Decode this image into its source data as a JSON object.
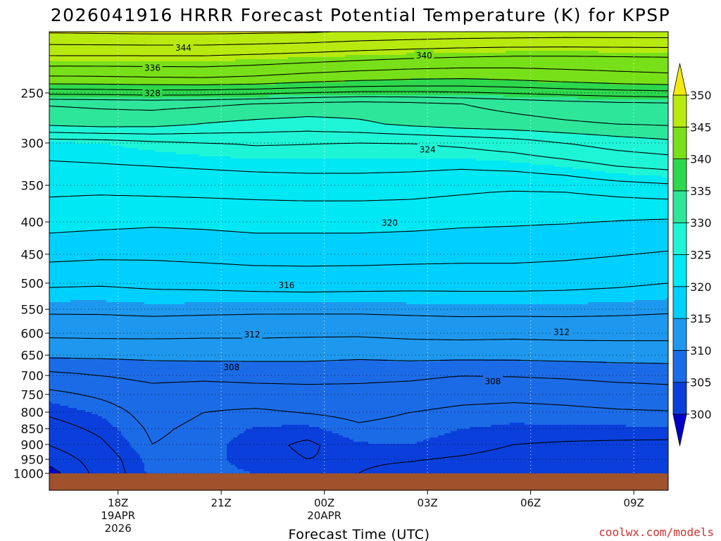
{
  "title": "2026041916 HRRR Forecast Potential Temperature (K) for KPSP",
  "credit": "coolwx.com/models",
  "colors": {
    "credit": "#cc3333",
    "ground": "#a0522d",
    "bands": [
      "#0000cc",
      "#0a3fdc",
      "#1c6be6",
      "#1e98ee",
      "#00d0ff",
      "#00e8f4",
      "#1ef5d6",
      "#2ee69a",
      "#2dd84c",
      "#78e018",
      "#b8ea10",
      "#f2ea10",
      "#ffd400"
    ]
  },
  "chart_data": {
    "type": "heatmap",
    "title": "2026041916 HRRR Forecast Potential Temperature (K) for KPSP",
    "xlabel": "Forecast Time (UTC)",
    "ylabel": "",
    "x_ticks": [
      {
        "hours": 2,
        "label": "18Z",
        "sub1": "19APR",
        "sub2": "2026"
      },
      {
        "hours": 5,
        "label": "21Z",
        "sub1": "",
        "sub2": ""
      },
      {
        "hours": 8,
        "label": "00Z",
        "sub1": "20APR",
        "sub2": ""
      },
      {
        "hours": 11,
        "label": "03Z",
        "sub1": "",
        "sub2": ""
      },
      {
        "hours": 14,
        "label": "06Z",
        "sub1": "",
        "sub2": ""
      },
      {
        "hours": 17,
        "label": "09Z",
        "sub1": "",
        "sub2": ""
      }
    ],
    "xlim": [
      0,
      18
    ],
    "y_ticks": [
      "250",
      "300",
      "350",
      "400",
      "450",
      "500",
      "550",
      "600",
      "650",
      "700",
      "750",
      "800",
      "850",
      "900",
      "950",
      "1000"
    ],
    "y_values": [
      250,
      300,
      350,
      400,
      450,
      500,
      550,
      600,
      650,
      700,
      750,
      800,
      850,
      900,
      950,
      1000
    ],
    "ylim": [
      200,
      1000
    ],
    "y_scale": "log",
    "grid": true,
    "colorbar": {
      "levels": [
        300,
        305,
        310,
        315,
        320,
        325,
        330,
        335,
        340,
        345,
        350
      ],
      "labels": [
        "300",
        "305",
        "310",
        "315",
        "320",
        "325",
        "330",
        "335",
        "340",
        "345",
        "350"
      ],
      "extend": "both"
    },
    "contour_interval": 2,
    "contour_labels": [
      {
        "text": "344",
        "hours": 3.9,
        "p": 212
      },
      {
        "text": "340",
        "hours": 10.9,
        "p": 218
      },
      {
        "text": "336",
        "hours": 3.0,
        "p": 228
      },
      {
        "text": "328",
        "hours": 3.0,
        "p": 250
      },
      {
        "text": "324",
        "hours": 11.0,
        "p": 307
      },
      {
        "text": "320",
        "hours": 9.9,
        "p": 401
      },
      {
        "text": "316",
        "hours": 6.9,
        "p": 503
      },
      {
        "text": "312",
        "hours": 5.9,
        "p": 602
      },
      {
        "text": "312",
        "hours": 14.9,
        "p": 597
      },
      {
        "text": "308",
        "hours": 5.3,
        "p": 679
      },
      {
        "text": "308",
        "hours": 12.9,
        "p": 714
      }
    ],
    "profiles": {
      "hours": [
        0,
        1.5,
        3,
        4.5,
        6,
        7.5,
        9,
        10.5,
        12,
        13.5,
        15,
        16.5,
        18
      ],
      "p": [
        200,
        220,
        240,
        260,
        280,
        300,
        330,
        360,
        400,
        450,
        500,
        550,
        600,
        650,
        700,
        750,
        800,
        850,
        900,
        950,
        1000
      ],
      "theta": [
        [
          350.2,
          345.6,
          340.8,
          332.2,
          330.4,
          324.8,
          323.6,
          322.2,
          320.7,
          318.6,
          316.3,
          314.4,
          312.4,
          310.4,
          307.4,
          305.5,
          304.3,
          303.2,
          302.1,
          300.7,
          299.2
        ],
        [
          350.3,
          345.6,
          340.9,
          332.4,
          330.8,
          325.0,
          323.7,
          322.1,
          320.5,
          318.4,
          316.2,
          314.4,
          312.5,
          310.4,
          308.0,
          306.3,
          305.2,
          304.4,
          303.7,
          303.0,
          302.8
        ],
        [
          350.4,
          345.6,
          341.1,
          332.6,
          330.7,
          325.5,
          323.8,
          322.2,
          320.3,
          318.4,
          316.4,
          314.6,
          312.5,
          310.5,
          308.6,
          307.1,
          306.7,
          306.3,
          306.0,
          305.5,
          305.3
        ],
        [
          350.4,
          345.6,
          341.2,
          332.4,
          329.9,
          325.9,
          324.0,
          322.3,
          320.4,
          318.6,
          316.5,
          314.5,
          312.4,
          310.6,
          308.5,
          306.8,
          306.0,
          305.6,
          305.4,
          305.3,
          305.3
        ],
        [
          350.3,
          345.3,
          340.9,
          332.0,
          329.4,
          326.2,
          324.2,
          322.4,
          320.6,
          318.8,
          316.7,
          314.4,
          312.4,
          310.6,
          308.6,
          307.1,
          305.7,
          304.9,
          304.5,
          304.6,
          305.0
        ],
        [
          350.2,
          344.9,
          340.3,
          331.5,
          329.1,
          326.1,
          324.3,
          322.5,
          320.6,
          318.8,
          316.8,
          314.4,
          312.3,
          310.6,
          308.6,
          307.3,
          306.1,
          304.7,
          303.7,
          304.0,
          304.5
        ],
        [
          349.8,
          344.5,
          339.8,
          331.2,
          329.6,
          325.9,
          324.3,
          322.5,
          320.6,
          318.8,
          316.7,
          314.4,
          312.3,
          310.4,
          308.5,
          307.3,
          306.5,
          305.7,
          304.9,
          304.2,
          304.0
        ],
        [
          349.6,
          344.1,
          339.5,
          331.5,
          330.4,
          326.0,
          324.2,
          322.4,
          320.5,
          318.7,
          316.6,
          314.5,
          312.5,
          310.6,
          308.4,
          307.0,
          306.0,
          305.4,
          305.0,
          304.1,
          303.5
        ],
        [
          349.4,
          343.8,
          339.4,
          332.0,
          331.0,
          326.4,
          324.0,
          322.1,
          320.3,
          318.6,
          316.6,
          314.6,
          312.6,
          310.6,
          308.0,
          306.6,
          305.6,
          305.0,
          304.6,
          303.8,
          303.1
        ],
        [
          349.3,
          343.6,
          339.7,
          332.6,
          331.3,
          327.0,
          324.2,
          321.8,
          320.2,
          318.6,
          316.6,
          314.6,
          312.5,
          310.6,
          308.1,
          306.5,
          305.4,
          304.8,
          304.0,
          303.4,
          302.8
        ],
        [
          349.2,
          343.6,
          340.2,
          333.1,
          331.7,
          328.0,
          324.7,
          321.9,
          320.1,
          318.4,
          316.5,
          314.6,
          312.6,
          310.7,
          308.3,
          306.6,
          305.6,
          304.8,
          303.8,
          303.2,
          302.6
        ],
        [
          349.2,
          343.7,
          340.6,
          333.5,
          332.0,
          328.9,
          325.6,
          322.3,
          319.9,
          318.1,
          316.3,
          314.5,
          312.6,
          310.8,
          308.6,
          306.9,
          305.8,
          304.8,
          303.7,
          303.0,
          302.4
        ],
        [
          349.2,
          343.8,
          340.9,
          333.7,
          332.2,
          329.5,
          326.1,
          322.6,
          319.7,
          317.8,
          316.0,
          314.3,
          312.6,
          310.8,
          308.8,
          307.1,
          305.9,
          304.9,
          303.6,
          302.8,
          302.2
        ]
      ]
    }
  }
}
